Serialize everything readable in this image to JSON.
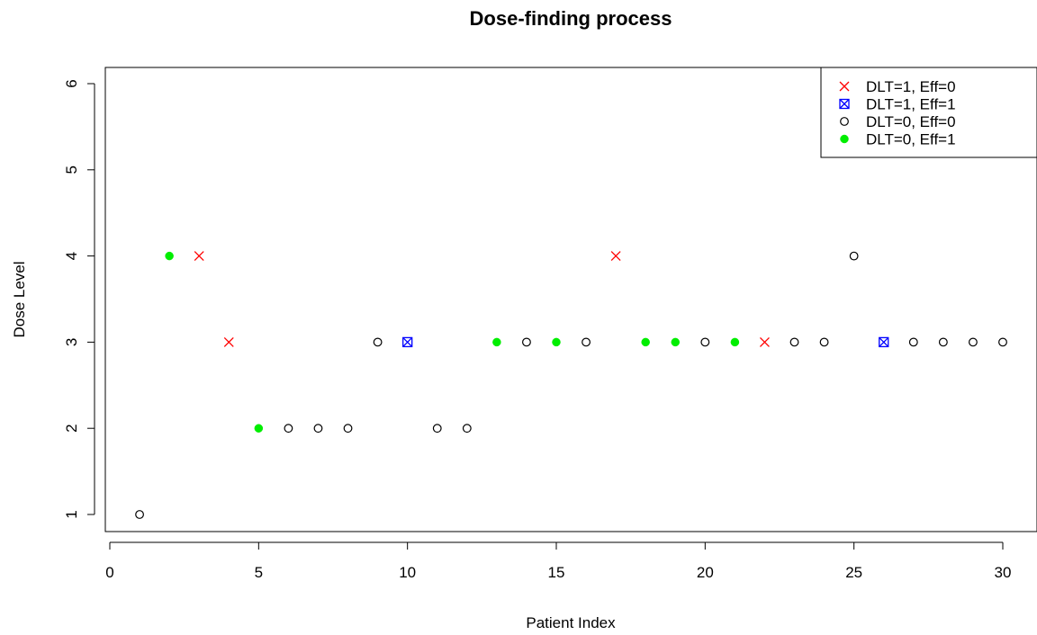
{
  "chart_data": {
    "type": "scatter",
    "title": "Dose-finding process",
    "xlabel": "Patient Index",
    "ylabel": "Dose Level",
    "xlim": [
      0,
      30
    ],
    "ylim": [
      1,
      6
    ],
    "xticks": [
      0,
      5,
      10,
      15,
      20,
      25,
      30
    ],
    "yticks": [
      1,
      2,
      3,
      4,
      5,
      6
    ],
    "grid": false,
    "legend_position": "top-right",
    "series": [
      {
        "name": "DLT=1, Eff=0",
        "marker": "x",
        "color": "#ff0000",
        "points": [
          [
            3,
            4
          ],
          [
            4,
            3
          ],
          [
            17,
            4
          ],
          [
            22,
            3
          ]
        ]
      },
      {
        "name": "DLT=1, Eff=1",
        "marker": "boxed-x",
        "color": "#0000ff",
        "points": [
          [
            10,
            3
          ],
          [
            26,
            3
          ]
        ]
      },
      {
        "name": "DLT=0, Eff=0",
        "marker": "open-circle",
        "color": "#000000",
        "points": [
          [
            1,
            1
          ],
          [
            6,
            2
          ],
          [
            7,
            2
          ],
          [
            8,
            2
          ],
          [
            9,
            3
          ],
          [
            11,
            2
          ],
          [
            12,
            2
          ],
          [
            14,
            3
          ],
          [
            16,
            3
          ],
          [
            20,
            3
          ],
          [
            23,
            3
          ],
          [
            24,
            3
          ],
          [
            25,
            4
          ],
          [
            27,
            3
          ],
          [
            28,
            3
          ],
          [
            29,
            3
          ],
          [
            30,
            3
          ]
        ]
      },
      {
        "name": "DLT=0, Eff=1",
        "marker": "filled-circle",
        "color": "#00ee00",
        "points": [
          [
            2,
            4
          ],
          [
            5,
            2
          ],
          [
            13,
            3
          ],
          [
            15,
            3
          ],
          [
            18,
            3
          ],
          [
            19,
            3
          ],
          [
            21,
            3
          ]
        ]
      }
    ]
  }
}
